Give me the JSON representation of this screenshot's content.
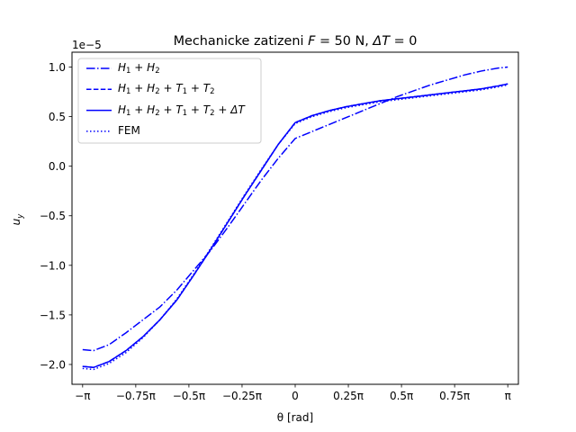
{
  "chart_data": {
    "type": "line",
    "title": "Mechanicke zatizeni F = 50 N, ΔT = 0",
    "title_parts": {
      "prefix": "Mechanicke zatizeni ",
      "F": "F",
      "mid": " = 50 N, ",
      "dT": "ΔT",
      "suffix": " = 0"
    },
    "xlabel": "θ [rad]",
    "ylabel": "u_y",
    "ylabel_main": "u",
    "ylabel_sub": "y",
    "y_offset_text": "1e−5",
    "xlim": [
      -3.2987,
      3.2987
    ],
    "ylim": [
      -2.2,
      1.15
    ],
    "grid": false,
    "legend_position": "top-left",
    "x_ticks": [
      {
        "value": -3.14159,
        "label": "−π"
      },
      {
        "value": -2.35619,
        "label": "−0.75π"
      },
      {
        "value": -1.5708,
        "label": "−0.5π"
      },
      {
        "value": -0.7854,
        "label": "−0.25π"
      },
      {
        "value": 0,
        "label": "0"
      },
      {
        "value": 0.7854,
        "label": "0.25π"
      },
      {
        "value": 1.5708,
        "label": "0.5π"
      },
      {
        "value": 2.35619,
        "label": "0.75π"
      },
      {
        "value": 3.14159,
        "label": "π"
      }
    ],
    "y_ticks": [
      {
        "value": 1.0,
        "label": "1.0"
      },
      {
        "value": 0.5,
        "label": "0.5"
      },
      {
        "value": 0.0,
        "label": "0.0"
      },
      {
        "value": -0.5,
        "label": "−0.5"
      },
      {
        "value": -1.0,
        "label": "−1.0"
      },
      {
        "value": -1.5,
        "label": "−1.5"
      },
      {
        "value": -2.0,
        "label": "−2.0"
      }
    ],
    "series": [
      {
        "name": "H1 + H2",
        "label_html": "H<sub>1</sub> + H<sub>2</sub>",
        "style": "dashdot",
        "color": "#0000ff",
        "x": [
          -3.1416,
          -2.98,
          -2.75,
          -2.5,
          -2.25,
          -2.0,
          -1.75,
          -1.5,
          -1.25,
          -1.0,
          -0.75,
          -0.5,
          -0.25,
          0.0,
          0.25,
          0.5,
          0.75,
          1.0,
          1.25,
          1.5,
          1.75,
          2.0,
          2.25,
          2.5,
          2.75,
          3.0,
          3.1416
        ],
        "y": [
          -1.85,
          -1.86,
          -1.8,
          -1.68,
          -1.55,
          -1.42,
          -1.25,
          -1.05,
          -0.85,
          -0.62,
          -0.38,
          -0.14,
          0.08,
          0.28,
          0.35,
          0.42,
          0.49,
          0.56,
          0.63,
          0.7,
          0.76,
          0.82,
          0.87,
          0.92,
          0.96,
          0.99,
          1.0
        ]
      },
      {
        "name": "H1 + H2 + T1 + T2",
        "label_html": "H<sub>1</sub> + H<sub>2</sub> + T<sub>1</sub> + T<sub>2</sub>",
        "style": "dashed",
        "color": "#0000ff",
        "x": [
          -3.1416,
          -2.98,
          -2.75,
          -2.5,
          -2.25,
          -2.0,
          -1.75,
          -1.5,
          -1.25,
          -1.0,
          -0.75,
          -0.5,
          -0.25,
          0.0,
          0.25,
          0.5,
          0.75,
          1.0,
          1.25,
          1.5,
          1.75,
          2.0,
          2.25,
          2.5,
          2.75,
          3.0,
          3.1416
        ],
        "y": [
          -2.02,
          -2.03,
          -1.97,
          -1.86,
          -1.72,
          -1.55,
          -1.35,
          -1.1,
          -0.84,
          -0.57,
          -0.3,
          -0.04,
          0.22,
          0.44,
          0.51,
          0.56,
          0.6,
          0.63,
          0.66,
          0.68,
          0.7,
          0.72,
          0.74,
          0.76,
          0.78,
          0.81,
          0.83
        ]
      },
      {
        "name": "H1 + H2 + T1 + T2 + ΔT",
        "label_html": "H<sub>1</sub> + H<sub>2</sub> + T<sub>1</sub> + T<sub>2</sub> + ΔT",
        "style": "solid",
        "color": "#0000ff",
        "x": [
          -3.1416,
          -2.98,
          -2.75,
          -2.5,
          -2.25,
          -2.0,
          -1.75,
          -1.5,
          -1.25,
          -1.0,
          -0.75,
          -0.5,
          -0.25,
          0.0,
          0.25,
          0.5,
          0.75,
          1.0,
          1.25,
          1.5,
          1.75,
          2.0,
          2.25,
          2.5,
          2.75,
          3.0,
          3.1416
        ],
        "y": [
          -2.02,
          -2.03,
          -1.97,
          -1.86,
          -1.72,
          -1.55,
          -1.35,
          -1.1,
          -0.84,
          -0.57,
          -0.3,
          -0.04,
          0.22,
          0.44,
          0.51,
          0.56,
          0.6,
          0.63,
          0.66,
          0.68,
          0.7,
          0.72,
          0.74,
          0.76,
          0.78,
          0.81,
          0.83
        ]
      },
      {
        "name": "FEM",
        "label_html": "FEM",
        "style": "dotted",
        "color": "#0000ff",
        "x": [
          -3.1416,
          -2.98,
          -2.75,
          -2.5,
          -2.25,
          -2.0,
          -1.75,
          -1.5,
          -1.25,
          -1.0,
          -0.75,
          -0.5,
          -0.25,
          0.0,
          0.25,
          0.5,
          0.75,
          1.0,
          1.25,
          1.5,
          1.75,
          2.0,
          2.25,
          2.5,
          2.75,
          3.0,
          3.1416
        ],
        "y": [
          -2.04,
          -2.05,
          -1.99,
          -1.88,
          -1.73,
          -1.55,
          -1.34,
          -1.09,
          -0.83,
          -0.56,
          -0.29,
          -0.03,
          0.22,
          0.43,
          0.5,
          0.55,
          0.59,
          0.62,
          0.65,
          0.67,
          0.69,
          0.71,
          0.73,
          0.75,
          0.77,
          0.8,
          0.82
        ]
      }
    ]
  }
}
